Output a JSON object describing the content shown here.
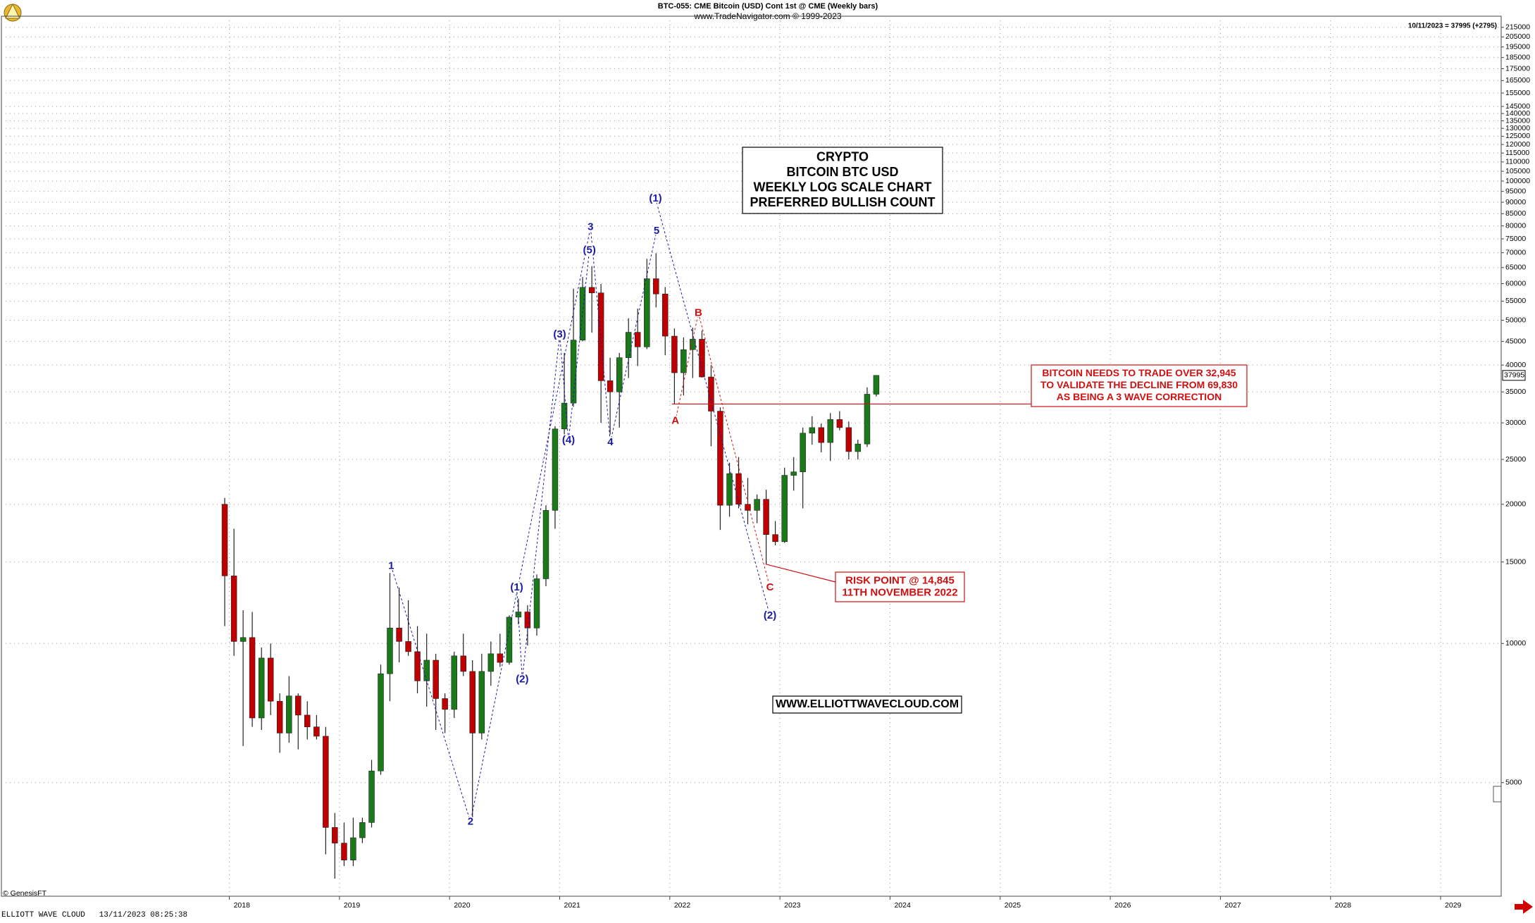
{
  "chart_data": {
    "type": "candlestick",
    "title": "BTC-055:  CME Bitcoin (USD) Cont 1st @ CME  (Weekly bars)",
    "subtitle": "www.TradeNavigator.com © 1999-2023",
    "last_quote": "10/11/2023 = 37995 (+2795)",
    "credit": "© GenesisFT",
    "footer": "ELLIOTT WAVE CLOUD   13/11/2023 08:25:38",
    "log_scale": true,
    "grid": true,
    "up_color": "#1a7a1a",
    "down_color": "#c00000",
    "xlim": [
      2015.93,
      2029.55
    ],
    "xticks": [
      2018,
      2019,
      2020,
      2021,
      2022,
      2023,
      2024,
      2025,
      2026,
      2027,
      2028,
      2029
    ],
    "ylim": [
      2840,
      221000
    ],
    "yticks": [
      5000,
      10000,
      15000,
      20000,
      25000,
      30000,
      35000,
      40000,
      45000,
      50000,
      55000,
      60000,
      65000,
      70000,
      75000,
      80000,
      85000,
      90000,
      95000,
      100000,
      105000,
      110000,
      115000,
      120000,
      125000,
      130000,
      135000,
      140000,
      145000,
      155000,
      165000,
      175000,
      185000,
      195000,
      205000,
      215000
    ],
    "x": [
      2017.958,
      2018.042,
      2018.125,
      2018.208,
      2018.292,
      2018.375,
      2018.458,
      2018.542,
      2018.625,
      2018.708,
      2018.792,
      2018.875,
      2018.958,
      2019.042,
      2019.125,
      2019.208,
      2019.292,
      2019.375,
      2019.458,
      2019.542,
      2019.625,
      2019.708,
      2019.792,
      2019.875,
      2019.958,
      2020.042,
      2020.125,
      2020.208,
      2020.292,
      2020.375,
      2020.458,
      2020.542,
      2020.625,
      2020.708,
      2020.792,
      2020.875,
      2020.958,
      2021.042,
      2021.125,
      2021.208,
      2021.292,
      2021.375,
      2021.458,
      2021.542,
      2021.625,
      2021.708,
      2021.792,
      2021.875,
      2021.958,
      2022.042,
      2022.125,
      2022.208,
      2022.292,
      2022.375,
      2022.458,
      2022.542,
      2022.625,
      2022.708,
      2022.792,
      2022.875,
      2022.958,
      2023.042,
      2023.125,
      2023.208,
      2023.292,
      2023.375,
      2023.458,
      2023.542,
      2023.625,
      2023.708,
      2023.792,
      2023.875
    ],
    "open": [
      20000,
      14000,
      10100,
      10300,
      6900,
      9300,
      7500,
      6400,
      7700,
      7000,
      6600,
      6300,
      4000,
      3700,
      3400,
      3800,
      4100,
      5300,
      8600,
      10800,
      10100,
      9600,
      8300,
      9200,
      7600,
      7200,
      9400,
      8700,
      6400,
      8700,
      9500,
      9100,
      11400,
      11700,
      10800,
      13800,
      19400,
      29100,
      33100,
      45300,
      58900,
      57300,
      37000,
      35000,
      41500,
      47100,
      43800,
      61500,
      57000,
      46200,
      38500,
      43200,
      45500,
      37700,
      31800,
      19900,
      23300,
      20000,
      19400,
      20500,
      17200,
      16600,
      23100,
      23500,
      28500,
      29300,
      27200,
      30500,
      29300,
      26000,
      27000,
      34600
    ],
    "high": [
      20650,
      17700,
      11800,
      11700,
      9800,
      10000,
      7800,
      8500,
      7800,
      7500,
      7000,
      6600,
      4300,
      4100,
      4200,
      4200,
      5600,
      9000,
      14200,
      13200,
      12400,
      10900,
      10500,
      9500,
      7800,
      9600,
      10500,
      9200,
      9500,
      10100,
      10500,
      11500,
      12500,
      12100,
      14100,
      19900,
      29500,
      42500,
      58500,
      62000,
      65500,
      59900,
      41500,
      42500,
      50500,
      53000,
      67900,
      69830,
      59000,
      48000,
      45900,
      48200,
      47500,
      40000,
      32400,
      24600,
      25300,
      22800,
      21000,
      21500,
      18400,
      24000,
      25300,
      29300,
      31000,
      29900,
      31500,
      31800,
      30200,
      27600,
      35800,
      38000
    ],
    "low": [
      10900,
      9400,
      6000,
      6600,
      6500,
      7000,
      5800,
      6100,
      5900,
      6200,
      6200,
      3500,
      3100,
      3300,
      3300,
      3700,
      4000,
      5200,
      7500,
      9100,
      9400,
      7800,
      7300,
      6500,
      6400,
      6900,
      8500,
      4200,
      6200,
      8100,
      8900,
      9000,
      11000,
      9900,
      10400,
      13300,
      17700,
      28000,
      32500,
      45000,
      47000,
      30000,
      28300,
      29300,
      37500,
      39800,
      43300,
      53300,
      42000,
      33000,
      34400,
      37500,
      37600,
      26700,
      17600,
      18800,
      19600,
      18100,
      18200,
      14845,
      16300,
      16500,
      21400,
      19600,
      26900,
      25900,
      24800,
      28900,
      25000,
      25000,
      26600,
      34200
    ],
    "close": [
      14000,
      10100,
      10300,
      6900,
      9300,
      7500,
      6400,
      7700,
      7000,
      6600,
      6300,
      4000,
      3700,
      3400,
      3800,
      4100,
      5300,
      8600,
      10800,
      10100,
      9600,
      8300,
      9200,
      7600,
      7200,
      9400,
      8700,
      6400,
      8700,
      9500,
      9100,
      11400,
      11700,
      10800,
      13800,
      19400,
      29100,
      33100,
      45300,
      58900,
      57300,
      37000,
      35000,
      41500,
      47100,
      43800,
      61500,
      57000,
      46200,
      38500,
      43200,
      45500,
      37700,
      31800,
      19900,
      23300,
      20000,
      19400,
      20500,
      17200,
      16600,
      23100,
      23500,
      28500,
      29300,
      27200,
      30500,
      29300,
      26000,
      27000,
      34600,
      37995
    ],
    "waves": [
      {
        "color": "#1a1aa6",
        "labels": [
          {
            "text": "1",
            "x": 2019.47,
            "y": 14700
          },
          {
            "text": "2",
            "x": 2020.19,
            "y": 4110
          },
          {
            "text": "3",
            "x": 2021.28,
            "y": 79400
          },
          {
            "text": "4",
            "x": 2021.46,
            "y": 27200
          },
          {
            "text": "5",
            "x": 2021.88,
            "y": 78000
          }
        ]
      },
      {
        "color": "#1a1aa6",
        "labels": [
          {
            "text": "(1)",
            "x": 2020.61,
            "y": 13200
          },
          {
            "text": "(2)",
            "x": 2020.66,
            "y": 8360
          },
          {
            "text": "(3)",
            "x": 2021.0,
            "y": 46500
          },
          {
            "text": "(4)",
            "x": 2021.08,
            "y": 27500
          },
          {
            "text": "(5)",
            "x": 2021.27,
            "y": 70800
          }
        ]
      },
      {
        "color": "#1a1aa6",
        "labels": [
          {
            "text": "(1)",
            "x": 2021.87,
            "y": 91600
          },
          {
            "text": "(2)",
            "x": 2022.91,
            "y": 11470
          }
        ]
      },
      {
        "color": "#d01010",
        "labels": [
          {
            "text": "A",
            "x": 2022.05,
            "y": 30300
          },
          {
            "text": "B",
            "x": 2022.26,
            "y": 51800
          },
          {
            "text": "C",
            "x": 2022.91,
            "y": 13200
          }
        ]
      }
    ],
    "info_box": [
      "CRYPTO",
      "BITCOIN BTC USD",
      "WEEKLY LOG SCALE CHART",
      "PREFERRED BULLISH COUNT"
    ],
    "website": "WWW.ELLIOTTWAVECLOUD.COM",
    "validation_note": {
      "level": 32945,
      "lines": [
        "BITCOIN NEEDS TO TRADE OVER 32,945",
        "TO VALIDATE THE DECLINE FROM 69,830",
        "AS BEING A 3 WAVE CORRECTION"
      ]
    },
    "risk_note": {
      "level": 14845,
      "lines": [
        "RISK POINT @ 14,845",
        "11TH NOVEMBER 2022"
      ]
    }
  }
}
